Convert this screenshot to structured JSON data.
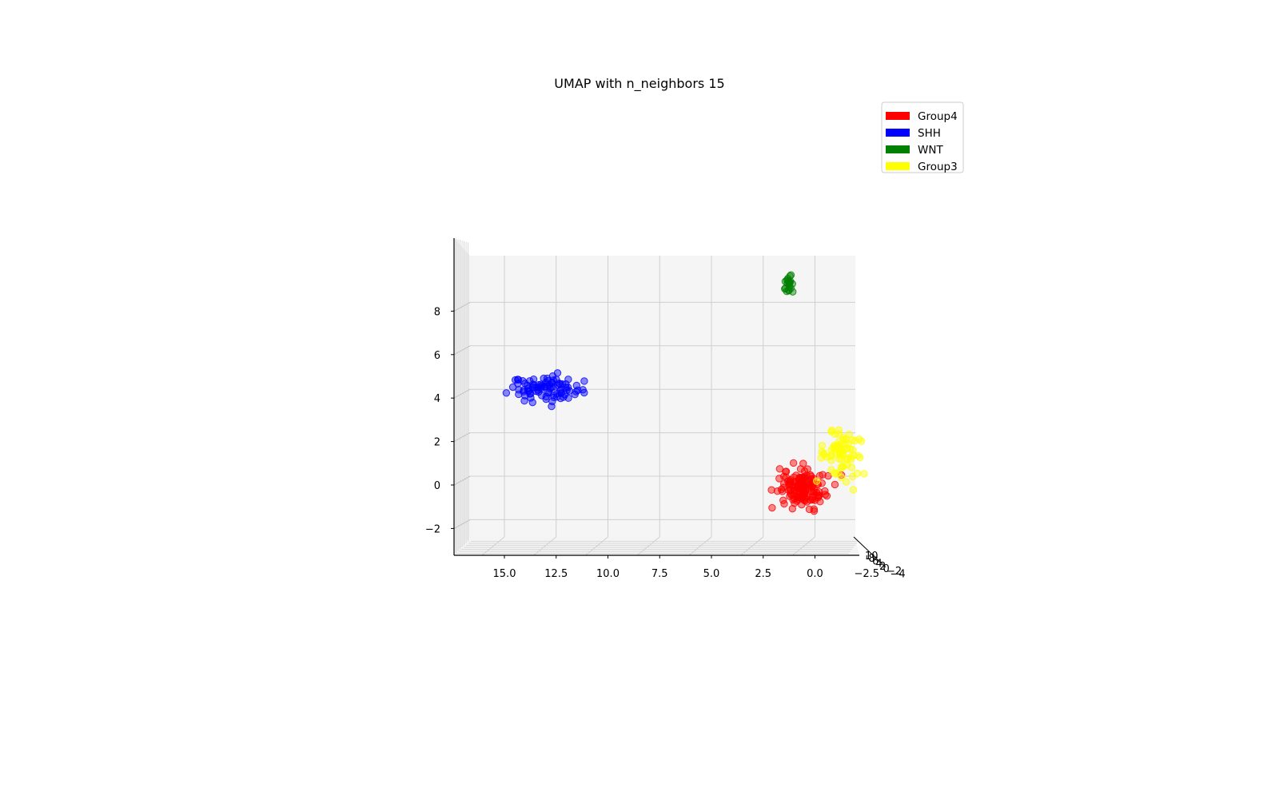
{
  "chart_data": {
    "type": "scatter",
    "title": "UMAP with n_neighbors 15",
    "xlabel": "",
    "ylabel": "",
    "grid": true,
    "legend_position": "top-right",
    "x_axis": {
      "range": [
        16.0,
        -3.0
      ],
      "direction": "reversed",
      "ticks": [
        15.0,
        12.5,
        10.0,
        7.5,
        5.0,
        2.5,
        0.0,
        -2.5
      ],
      "tick_labels": [
        "15.0",
        "12.5",
        "10.0",
        "7.5",
        "5.0",
        "2.5",
        "0.0",
        "−2.5"
      ]
    },
    "z_axis": {
      "range": [
        -2.7,
        9.5
      ],
      "ticks": [
        -2,
        0,
        2,
        4,
        6,
        8
      ],
      "tick_labels": [
        "−2",
        "0",
        "2",
        "4",
        "6",
        "8"
      ]
    },
    "depth_axis_tick_labels": [
      "10",
      "8",
      "6",
      "4",
      "2",
      "0",
      "−2",
      "−4"
    ],
    "series": [
      {
        "name": "Group4",
        "color": "#ff0000",
        "points": []
      },
      {
        "name": "SHH",
        "color": "#0000ff",
        "points": []
      },
      {
        "name": "WNT",
        "color": "#008000",
        "points": []
      },
      {
        "name": "Group3",
        "color": "#ffff00",
        "points": []
      }
    ],
    "clusters": [
      {
        "series": "SHH",
        "x_center": 13.0,
        "z_center": 4.0,
        "x_spread": 1.5,
        "z_spread": 0.5,
        "approx_points": 90
      },
      {
        "series": "WNT",
        "x_center": 1.3,
        "z_center": 8.8,
        "x_spread": 0.2,
        "z_spread": 0.35,
        "approx_points": 20
      },
      {
        "series": "Group4",
        "x_center": 0.6,
        "z_center": -0.5,
        "x_spread": 0.9,
        "z_spread": 0.8,
        "approx_points": 150
      },
      {
        "series": "Group3",
        "x_center": -1.3,
        "z_center": 1.0,
        "x_spread": 0.9,
        "z_spread": 0.8,
        "approx_points": 70
      }
    ]
  }
}
